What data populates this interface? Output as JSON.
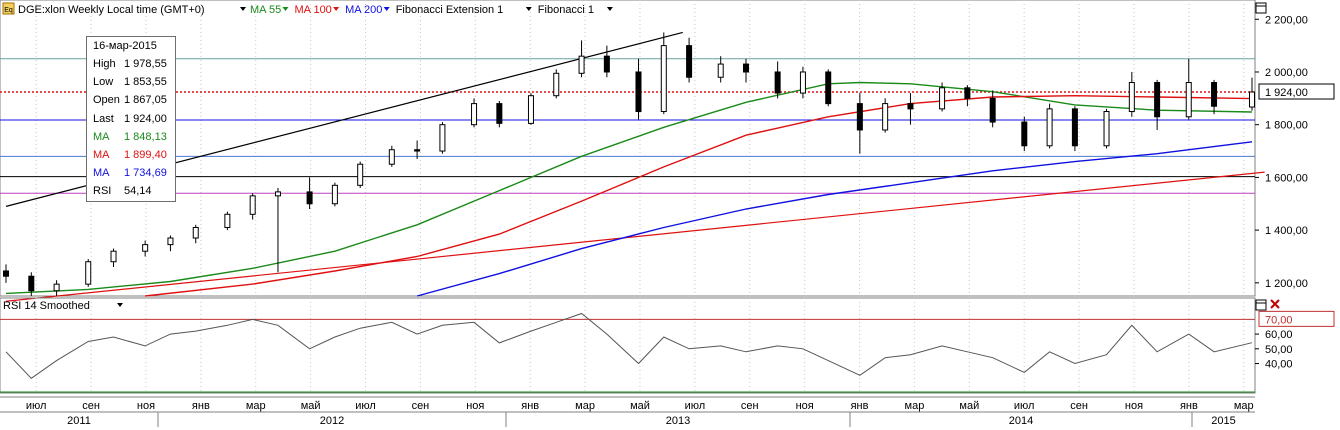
{
  "header": {
    "icon_label": "Eq",
    "instrument": "DGE:xlon Weekly Local time (GMT+0)",
    "indicators": [
      {
        "label": "MA 55",
        "color": "#1a8a1a"
      },
      {
        "label": "MA 100",
        "color": "#e01010"
      },
      {
        "label": "MA 200",
        "color": "#1010e0"
      },
      {
        "label": "Fibonacci Extension 1",
        "color": "#000000"
      },
      {
        "label": "Fibonacci 1",
        "color": "#000000"
      }
    ]
  },
  "rsi_header": {
    "label": "RSI 14 Smoothed"
  },
  "tooltip": {
    "date": "16-мар-2015",
    "rows": [
      {
        "label": "High",
        "value": "1 978,55",
        "color": "#000000"
      },
      {
        "label": "Low",
        "value": "1 853,55",
        "color": "#000000"
      },
      {
        "label": "Open",
        "value": "1 867,05",
        "color": "#000000"
      },
      {
        "label": "Last",
        "value": "1 924,00",
        "color": "#000000"
      },
      {
        "label": "MA",
        "value": "1 848,13",
        "color": "#1a8a1a"
      },
      {
        "label": "MA",
        "value": "1 899,40",
        "color": "#e01010"
      },
      {
        "label": "MA",
        "value": "1 734,69",
        "color": "#1010e0"
      },
      {
        "label": "RSI",
        "value": "54,14",
        "color": "#000000"
      }
    ]
  },
  "price_axis": {
    "labels": [
      {
        "v": 2200,
        "t": "2 200,00"
      },
      {
        "v": 2000,
        "t": "2 000,00"
      },
      {
        "v": 1800,
        "t": "1 800,00"
      },
      {
        "v": 1600,
        "t": "1 600,00"
      },
      {
        "v": 1400,
        "t": "1 400,00"
      },
      {
        "v": 1200,
        "t": "1 200,00"
      }
    ],
    "last_price_label": "1 924,00"
  },
  "rsi_axis": {
    "labels": [
      {
        "v": 60,
        "t": "60,00"
      },
      {
        "v": 50,
        "t": "50,00"
      },
      {
        "v": 40,
        "t": "40,00"
      }
    ],
    "overbought_label": "70,00"
  },
  "time_axis": {
    "months": [
      "июл",
      "сен",
      "ноя",
      "янв",
      "мар",
      "май",
      "июл",
      "сен",
      "ноя",
      "янв",
      "мар",
      "май",
      "июл",
      "сен",
      "ноя",
      "янв",
      "мар",
      "май",
      "июл",
      "сен",
      "ноя",
      "янв",
      "мар"
    ],
    "years": [
      "2011",
      "2012",
      "2013",
      "2014",
      "2015"
    ]
  },
  "chart_data": [
    {
      "type": "candlestick",
      "title": "DGE:xlon Weekly Local time (GMT+0)",
      "x_start": "2011-06-06",
      "x_end": "2015-03-16",
      "ylim": [
        1150,
        2220
      ],
      "series": [
        {
          "name": "MA 55",
          "points": [
            [
              "2011-06-06",
              1160
            ],
            [
              "2011-09-05",
              1175
            ],
            [
              "2011-12-05",
              1205
            ],
            [
              "2012-03-05",
              1255
            ],
            [
              "2012-06-04",
              1320
            ],
            [
              "2012-09-03",
              1420
            ],
            [
              "2012-12-03",
              1550
            ],
            [
              "2013-03-04",
              1680
            ],
            [
              "2013-06-03",
              1790
            ],
            [
              "2013-09-02",
              1885
            ],
            [
              "2013-12-02",
              1955
            ],
            [
              "2014-01-06",
              1960
            ],
            [
              "2014-03-03",
              1955
            ],
            [
              "2014-06-02",
              1925
            ],
            [
              "2014-09-01",
              1875
            ],
            [
              "2014-12-01",
              1855
            ],
            [
              "2015-03-16",
              1848
            ]
          ]
        },
        {
          "name": "MA 100",
          "points": [
            [
              "2011-11-07",
              1150
            ],
            [
              "2012-03-05",
              1195
            ],
            [
              "2012-06-04",
              1245
            ],
            [
              "2012-09-03",
              1300
            ],
            [
              "2012-12-03",
              1385
            ],
            [
              "2013-03-04",
              1510
            ],
            [
              "2013-06-03",
              1640
            ],
            [
              "2013-09-02",
              1760
            ],
            [
              "2013-12-02",
              1830
            ],
            [
              "2014-03-03",
              1880
            ],
            [
              "2014-06-02",
              1905
            ],
            [
              "2014-09-01",
              1910
            ],
            [
              "2014-12-01",
              1905
            ],
            [
              "2015-03-16",
              1899
            ]
          ]
        },
        {
          "name": "MA 200",
          "points": [
            [
              "2012-09-03",
              1150
            ],
            [
              "2012-12-03",
              1235
            ],
            [
              "2013-03-04",
              1330
            ],
            [
              "2013-06-03",
              1410
            ],
            [
              "2013-09-02",
              1480
            ],
            [
              "2013-12-02",
              1535
            ],
            [
              "2014-03-03",
              1580
            ],
            [
              "2014-06-02",
              1625
            ],
            [
              "2014-09-01",
              1660
            ],
            [
              "2014-12-01",
              1690
            ],
            [
              "2015-03-16",
              1735
            ]
          ]
        }
      ],
      "candles": [
        {
          "x": "2011-06-06",
          "o": 1245,
          "h": 1270,
          "l": 1200,
          "c": 1225
        },
        {
          "x": "2011-07-04",
          "o": 1225,
          "h": 1240,
          "l": 1150,
          "c": 1170
        },
        {
          "x": "2011-08-01",
          "o": 1170,
          "h": 1210,
          "l": 1150,
          "c": 1195
        },
        {
          "x": "2011-09-05",
          "o": 1195,
          "h": 1290,
          "l": 1185,
          "c": 1280
        },
        {
          "x": "2011-10-03",
          "o": 1280,
          "h": 1330,
          "l": 1260,
          "c": 1320
        },
        {
          "x": "2011-11-07",
          "o": 1320,
          "h": 1360,
          "l": 1300,
          "c": 1345
        },
        {
          "x": "2011-12-05",
          "o": 1345,
          "h": 1380,
          "l": 1320,
          "c": 1370
        },
        {
          "x": "2012-01-02",
          "o": 1370,
          "h": 1420,
          "l": 1350,
          "c": 1410
        },
        {
          "x": "2012-02-06",
          "o": 1410,
          "h": 1470,
          "l": 1400,
          "c": 1460
        },
        {
          "x": "2012-03-05",
          "o": 1460,
          "h": 1540,
          "l": 1440,
          "c": 1530
        },
        {
          "x": "2012-04-02",
          "o": 1530,
          "h": 1560,
          "l": 1240,
          "c": 1545
        },
        {
          "x": "2012-05-07",
          "o": 1545,
          "h": 1600,
          "l": 1480,
          "c": 1500
        },
        {
          "x": "2012-06-04",
          "o": 1500,
          "h": 1580,
          "l": 1490,
          "c": 1570
        },
        {
          "x": "2012-07-02",
          "o": 1570,
          "h": 1660,
          "l": 1560,
          "c": 1650
        },
        {
          "x": "2012-08-06",
          "o": 1650,
          "h": 1720,
          "l": 1640,
          "c": 1705
        },
        {
          "x": "2012-09-03",
          "o": 1705,
          "h": 1740,
          "l": 1670,
          "c": 1700
        },
        {
          "x": "2012-10-01",
          "o": 1700,
          "h": 1810,
          "l": 1690,
          "c": 1800
        },
        {
          "x": "2012-11-05",
          "o": 1800,
          "h": 1900,
          "l": 1790,
          "c": 1880
        },
        {
          "x": "2012-12-03",
          "o": 1880,
          "h": 1890,
          "l": 1790,
          "c": 1805
        },
        {
          "x": "2013-01-07",
          "o": 1805,
          "h": 1920,
          "l": 1800,
          "c": 1910
        },
        {
          "x": "2013-02-04",
          "o": 1910,
          "h": 2010,
          "l": 1900,
          "c": 1995
        },
        {
          "x": "2013-03-04",
          "o": 1995,
          "h": 2120,
          "l": 1980,
          "c": 2060
        },
        {
          "x": "2013-04-01",
          "o": 2060,
          "h": 2100,
          "l": 1980,
          "c": 2000
        },
        {
          "x": "2013-05-06",
          "o": 2000,
          "h": 2050,
          "l": 1820,
          "c": 1850
        },
        {
          "x": "2013-06-03",
          "o": 1850,
          "h": 2150,
          "l": 1840,
          "c": 2100
        },
        {
          "x": "2013-07-01",
          "o": 2100,
          "h": 2130,
          "l": 1960,
          "c": 1980
        },
        {
          "x": "2013-08-05",
          "o": 1980,
          "h": 2060,
          "l": 1960,
          "c": 2030
        },
        {
          "x": "2013-09-02",
          "o": 2030,
          "h": 2050,
          "l": 1960,
          "c": 2000
        },
        {
          "x": "2013-10-07",
          "o": 2000,
          "h": 2040,
          "l": 1900,
          "c": 1920
        },
        {
          "x": "2013-11-04",
          "o": 1920,
          "h": 2020,
          "l": 1900,
          "c": 2000
        },
        {
          "x": "2013-12-02",
          "o": 2000,
          "h": 2010,
          "l": 1870,
          "c": 1880
        },
        {
          "x": "2014-01-06",
          "o": 1880,
          "h": 1920,
          "l": 1690,
          "c": 1780
        },
        {
          "x": "2014-02-03",
          "o": 1780,
          "h": 1900,
          "l": 1770,
          "c": 1880
        },
        {
          "x": "2014-03-03",
          "o": 1880,
          "h": 1920,
          "l": 1800,
          "c": 1860
        },
        {
          "x": "2014-04-07",
          "o": 1860,
          "h": 1960,
          "l": 1850,
          "c": 1940
        },
        {
          "x": "2014-05-05",
          "o": 1940,
          "h": 1950,
          "l": 1870,
          "c": 1900
        },
        {
          "x": "2014-06-02",
          "o": 1900,
          "h": 1930,
          "l": 1790,
          "c": 1810
        },
        {
          "x": "2014-07-07",
          "o": 1810,
          "h": 1830,
          "l": 1700,
          "c": 1720
        },
        {
          "x": "2014-08-04",
          "o": 1720,
          "h": 1880,
          "l": 1710,
          "c": 1860
        },
        {
          "x": "2014-09-01",
          "o": 1860,
          "h": 1870,
          "l": 1700,
          "c": 1720
        },
        {
          "x": "2014-10-06",
          "o": 1720,
          "h": 1860,
          "l": 1710,
          "c": 1850
        },
        {
          "x": "2014-11-03",
          "o": 1850,
          "h": 2000,
          "l": 1830,
          "c": 1960
        },
        {
          "x": "2014-12-01",
          "o": 1960,
          "h": 1970,
          "l": 1780,
          "c": 1830
        },
        {
          "x": "2015-01-05",
          "o": 1830,
          "h": 2050,
          "l": 1820,
          "c": 1960
        },
        {
          "x": "2015-02-02",
          "o": 1960,
          "h": 1970,
          "l": 1840,
          "c": 1870
        },
        {
          "x": "2015-03-16",
          "o": 1867.05,
          "h": 1978.55,
          "l": 1853.55,
          "c": 1924.0
        }
      ],
      "horizontal_levels": [
        {
          "v": 1924,
          "color": "#e01010",
          "style": "dotted"
        },
        {
          "v": 2050,
          "color": "#6aa0a0",
          "style": "solid"
        },
        {
          "v": 1818,
          "color": "#1010e0",
          "style": "solid"
        },
        {
          "v": 1680,
          "color": "#4a7ad0",
          "style": "solid"
        },
        {
          "v": 1603,
          "color": "#000000",
          "style": "solid"
        },
        {
          "v": 1540,
          "color": "#c040c0",
          "style": "solid"
        }
      ],
      "trendlines": [
        {
          "color": "#000000",
          "from": [
            "2011-06-06",
            1490
          ],
          "to": [
            "2013-06-24",
            2150
          ]
        },
        {
          "color": "#e01010",
          "from": [
            "2011-06-06",
            1130
          ],
          "to": [
            "2015-03-30",
            1620
          ]
        }
      ]
    },
    {
      "type": "line",
      "title": "RSI 14 Smoothed",
      "ylim": [
        20,
        75
      ],
      "overbought": 70,
      "series": [
        {
          "name": "RSI 14 Smoothed",
          "points": [
            [
              "2011-06-06",
              48
            ],
            [
              "2011-07-04",
              30
            ],
            [
              "2011-08-01",
              42
            ],
            [
              "2011-09-05",
              55
            ],
            [
              "2011-10-03",
              58
            ],
            [
              "2011-11-07",
              52
            ],
            [
              "2011-12-05",
              60
            ],
            [
              "2012-01-02",
              62
            ],
            [
              "2012-02-06",
              66
            ],
            [
              "2012-03-05",
              70
            ],
            [
              "2012-04-02",
              66
            ],
            [
              "2012-05-07",
              50
            ],
            [
              "2012-06-04",
              58
            ],
            [
              "2012-07-02",
              64
            ],
            [
              "2012-08-06",
              68
            ],
            [
              "2012-09-03",
              60
            ],
            [
              "2012-10-01",
              66
            ],
            [
              "2012-11-05",
              68
            ],
            [
              "2012-12-03",
              54
            ],
            [
              "2013-01-07",
              62
            ],
            [
              "2013-02-04",
              68
            ],
            [
              "2013-03-04",
              74
            ],
            [
              "2013-04-01",
              60
            ],
            [
              "2013-05-06",
              40
            ],
            [
              "2013-06-03",
              58
            ],
            [
              "2013-07-01",
              50
            ],
            [
              "2013-08-05",
              52
            ],
            [
              "2013-09-02",
              48
            ],
            [
              "2013-10-07",
              52
            ],
            [
              "2013-11-04",
              50
            ],
            [
              "2013-12-02",
              42
            ],
            [
              "2014-01-06",
              32
            ],
            [
              "2014-02-03",
              44
            ],
            [
              "2014-03-03",
              46
            ],
            [
              "2014-04-07",
              52
            ],
            [
              "2014-05-05",
              48
            ],
            [
              "2014-06-02",
              44
            ],
            [
              "2014-07-07",
              34
            ],
            [
              "2014-08-04",
              48
            ],
            [
              "2014-09-01",
              40
            ],
            [
              "2014-10-06",
              46
            ],
            [
              "2014-11-03",
              66
            ],
            [
              "2014-12-01",
              48
            ],
            [
              "2015-01-05",
              60
            ],
            [
              "2015-02-02",
              48
            ],
            [
              "2015-03-16",
              54.14
            ]
          ]
        }
      ]
    }
  ]
}
